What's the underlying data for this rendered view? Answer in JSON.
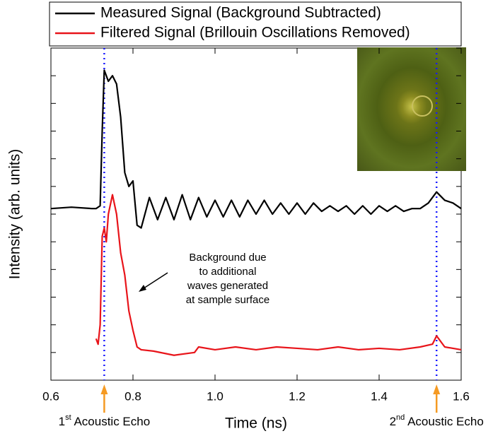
{
  "chart_data": {
    "type": "line",
    "xlabel": "Time (ns)",
    "ylabel": "Intensity (arb. units)",
    "xlim": [
      0.6,
      1.6
    ],
    "xticks": [
      0.6,
      0.8,
      {
        "value": 1,
        "label": "1.0"
      },
      1.2,
      1.4,
      1.6
    ],
    "ylim": [
      0,
      12
    ],
    "yticks": [
      0,
      1,
      2,
      3,
      4,
      5,
      6,
      7,
      8,
      9,
      10,
      11,
      12
    ],
    "series": [
      {
        "name": "Measured Signal (Background Subtracted)",
        "color": "#000000",
        "x": [
          0.6,
          0.65,
          0.7,
          0.71,
          0.72,
          0.725,
          0.73,
          0.74,
          0.75,
          0.76,
          0.77,
          0.78,
          0.79,
          0.8,
          0.81,
          0.82,
          0.84,
          0.86,
          0.88,
          0.9,
          0.92,
          0.94,
          0.96,
          0.98,
          1.0,
          1.02,
          1.04,
          1.06,
          1.08,
          1.1,
          1.12,
          1.14,
          1.16,
          1.18,
          1.2,
          1.22,
          1.24,
          1.26,
          1.28,
          1.3,
          1.32,
          1.34,
          1.36,
          1.38,
          1.4,
          1.42,
          1.44,
          1.46,
          1.48,
          1.5,
          1.52,
          1.54,
          1.56,
          1.58,
          1.6
        ],
        "values": [
          6.2,
          6.25,
          6.2,
          6.2,
          6.3,
          9.0,
          11.2,
          10.8,
          11.0,
          10.7,
          9.5,
          7.5,
          7.0,
          7.2,
          5.6,
          5.5,
          6.6,
          5.8,
          6.6,
          5.8,
          6.7,
          5.8,
          6.6,
          5.9,
          6.5,
          5.9,
          6.5,
          5.9,
          6.5,
          6.0,
          6.5,
          6.0,
          6.4,
          6.0,
          6.4,
          6.0,
          6.4,
          6.1,
          6.3,
          6.1,
          6.3,
          6.0,
          6.3,
          6.0,
          6.3,
          6.1,
          6.3,
          6.1,
          6.2,
          6.2,
          6.4,
          6.8,
          6.5,
          6.4,
          6.2
        ]
      },
      {
        "name": "Filtered Signal (Brillouin Oscillations Removed)",
        "color": "#e8141a",
        "x": [
          0.71,
          0.715,
          0.72,
          0.725,
          0.73,
          0.735,
          0.74,
          0.75,
          0.76,
          0.77,
          0.78,
          0.79,
          0.8,
          0.81,
          0.82,
          0.85,
          0.9,
          0.95,
          0.96,
          1.0,
          1.05,
          1.1,
          1.15,
          1.2,
          1.25,
          1.3,
          1.35,
          1.4,
          1.45,
          1.5,
          1.53,
          1.54,
          1.56,
          1.6
        ],
        "values": [
          1.5,
          1.3,
          2.0,
          5.2,
          5.5,
          5.0,
          6.0,
          6.7,
          6.0,
          4.6,
          3.8,
          2.5,
          1.8,
          1.2,
          1.1,
          1.05,
          0.9,
          1.0,
          1.2,
          1.1,
          1.2,
          1.1,
          1.2,
          1.15,
          1.1,
          1.2,
          1.1,
          1.15,
          1.1,
          1.2,
          1.3,
          1.6,
          1.2,
          1.1
        ]
      }
    ],
    "echoes": [
      {
        "x": 0.73,
        "label": [
          "1",
          "st",
          " Acoustic Echo"
        ]
      },
      {
        "x": 1.54,
        "label": [
          "2",
          "nd",
          " Acoustic Echo"
        ]
      }
    ],
    "annotation": [
      "Background due",
      "to additional",
      "waves generated",
      "at sample surface"
    ]
  }
}
